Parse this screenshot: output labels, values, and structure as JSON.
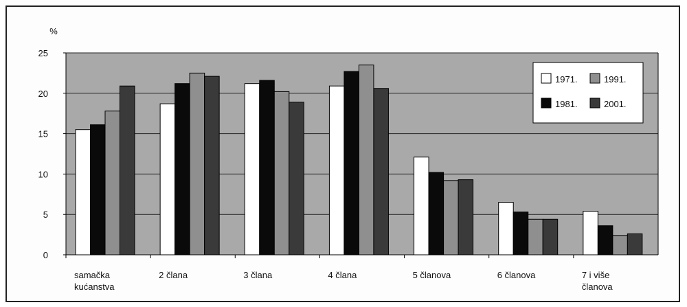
{
  "chart_data": {
    "type": "bar",
    "ylabel": "%",
    "ylim": [
      0,
      25
    ],
    "yticks": [
      "0",
      "5",
      "10",
      "15",
      "20",
      "25"
    ],
    "grid": true,
    "legend_position": "top-right",
    "categories": [
      [
        "samačka",
        "kućanstva"
      ],
      [
        "2 člana"
      ],
      [
        "3 člana"
      ],
      [
        "4 člana"
      ],
      [
        "5 članova"
      ],
      [
        "6 članova"
      ],
      [
        "7 i više",
        "članova"
      ]
    ],
    "series": [
      {
        "name": "1971.",
        "color": "#ffffff",
        "values": [
          15.5,
          18.7,
          21.2,
          20.9,
          12.1,
          6.5,
          5.4
        ]
      },
      {
        "name": "1981.",
        "color": "#0a0a0a",
        "values": [
          16.1,
          21.2,
          21.6,
          22.7,
          10.2,
          5.3,
          3.6
        ]
      },
      {
        "name": "1991.",
        "color": "#8f8f8f",
        "values": [
          17.8,
          22.5,
          20.2,
          23.5,
          9.2,
          4.4,
          2.4
        ]
      },
      {
        "name": "2001.",
        "color": "#3a3a3a",
        "values": [
          20.9,
          22.1,
          18.9,
          20.6,
          9.3,
          4.4,
          2.6
        ]
      }
    ],
    "plot_background": "#a9a9a9"
  }
}
